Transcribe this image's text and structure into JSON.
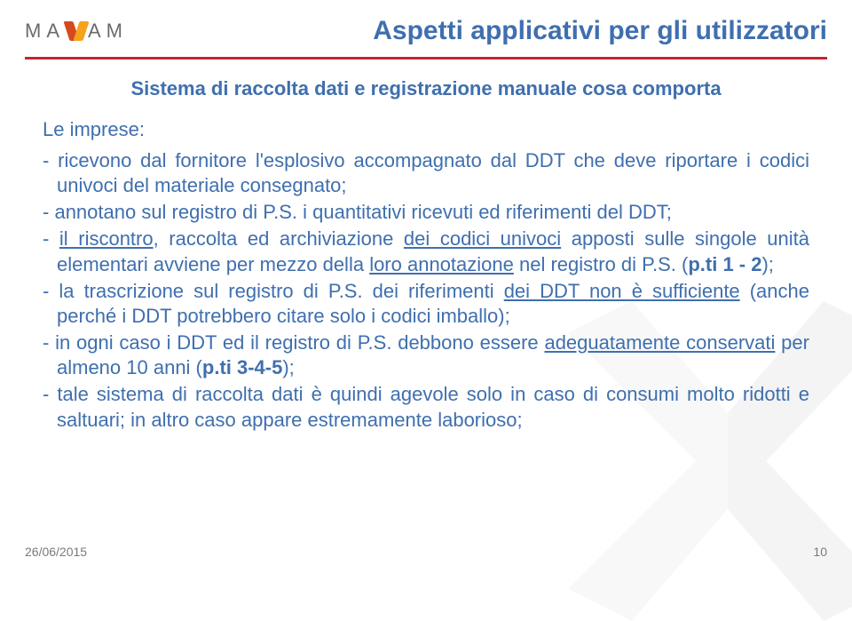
{
  "logo": {
    "pre": "MA",
    "post": "AM"
  },
  "title": "Aspetti applicativi per gli utilizzatori",
  "subtitle": "Sistema di raccolta dati e registrazione manuale cosa comporta",
  "lead": "Le imprese:",
  "bullets": [
    {
      "parts": [
        {
          "t": "ricevono dal fornitore l'esplosivo accompagnato dal DDT che deve riportare i codici univoci del materiale consegnato;"
        }
      ]
    },
    {
      "parts": [
        {
          "t": "annotano sul registro di P.S. i quantitativi ricevuti ed riferimenti del DDT;"
        }
      ]
    },
    {
      "parts": [
        {
          "t": "il riscontro",
          "u": true
        },
        {
          "t": ", raccolta ed archiviazione "
        },
        {
          "t": "dei codici univoci",
          "u": true
        },
        {
          "t": " apposti sulle singole unità elementari avviene per mezzo della "
        },
        {
          "t": "loro annotazione",
          "u": true
        },
        {
          "t": " nel registro di P.S. ("
        },
        {
          "t": "p.ti 1 - 2",
          "b": true
        },
        {
          "t": ");"
        }
      ]
    },
    {
      "parts": [
        {
          "t": "la trascrizione sul registro di P.S. dei riferimenti "
        },
        {
          "t": "dei DDT non è sufficiente",
          "u": true
        },
        {
          "t": " (anche perché i DDT potrebbero citare solo i codici imballo);"
        }
      ]
    },
    {
      "parts": [
        {
          "t": "in ogni caso i DDT ed il registro di P.S. debbono essere "
        },
        {
          "t": "adeguatamente conservati",
          "u": true
        },
        {
          "t": " per almeno 10 anni ("
        },
        {
          "t": "p.ti 3-4-5",
          "b": true
        },
        {
          "t": ");"
        }
      ]
    },
    {
      "parts": [
        {
          "t": "tale sistema di raccolta dati è quindi agevole solo in caso di consumi molto ridotti e saltuari; in altro caso appare estremamente laborioso;"
        }
      ]
    }
  ],
  "footer": {
    "date": "26/06/2015",
    "page": "10"
  },
  "colors": {
    "brand_blue": "#3f6fae",
    "red_line": "#c1272d",
    "logo_grey": "#6b6b6b",
    "bg_orange": "#f5a31b",
    "bg_red": "#d44a1f"
  }
}
